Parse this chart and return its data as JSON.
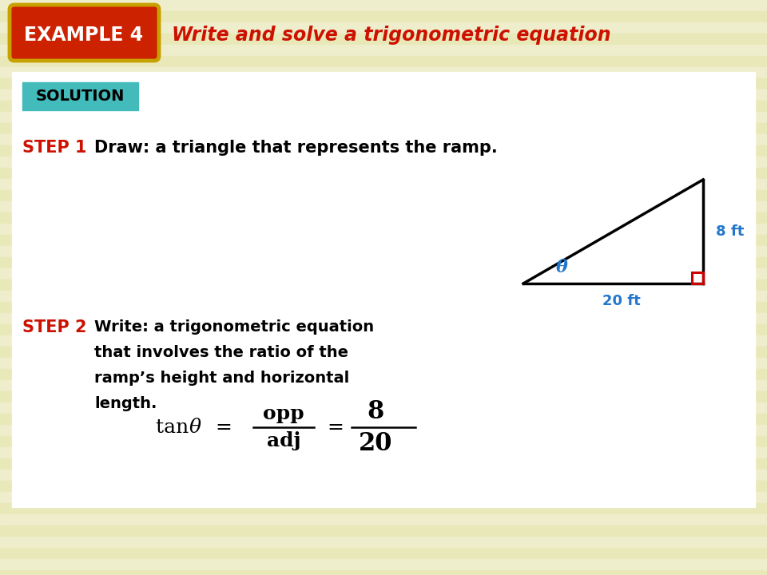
{
  "bg_color": "#f5f5d5",
  "stripe_light": "#eeeecc",
  "stripe_dark": "#e8e8b8",
  "white_area": "#ffffff",
  "example_box_color": "#cc2200",
  "example_box_border": "#8B6000",
  "example_text": "EXAMPLE 4",
  "title_text": "Write and solve a trigonometric equation",
  "title_color": "#cc1100",
  "solution_box_color": "#44bbbb",
  "solution_text": "SOLUTION",
  "step1_label": "STEP 1",
  "step1_color": "#cc1100",
  "step1_text": "Draw: a triangle that represents the ramp.",
  "step2_label": "STEP 2",
  "step2_color": "#cc1100",
  "step2_lines": [
    "Write: a trigonometric equation",
    "that involves the ratio of the",
    "ramp’s height and horizontal",
    "length."
  ],
  "triangle_color": "#000000",
  "right_angle_color": "#cc0000",
  "label_color": "#2277cc",
  "side_vertical": "8 ft",
  "side_horizontal": "20 ft",
  "angle_label": "θ",
  "formula_tan": "tan ",
  "formula_theta": "θ",
  "formula_eq1": "=",
  "formula_frac_top": "opp",
  "formula_frac_bot": "adj",
  "formula_eq2": "=",
  "formula_num": "8",
  "formula_den": "20"
}
